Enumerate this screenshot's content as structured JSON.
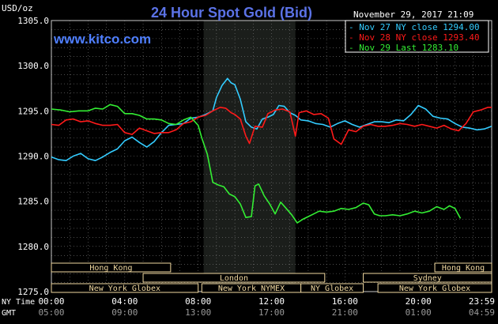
{
  "chart_data": {
    "type": "line",
    "title": "24 Hour Spot Gold (Bid)",
    "watermark": "www.kitco.com",
    "y_unit_label": "USD/oz",
    "timestamp": "November 29, 2017 21:09",
    "ylim": [
      1275.0,
      1305.0
    ],
    "y_ticks": [
      "1305.0",
      "1300.0",
      "1295.0",
      "1290.0",
      "1285.0",
      "1280.0",
      "1275.0"
    ],
    "x_row_ny_label": "NY Time",
    "x_row_gmt_label": "GMT",
    "x_ticks_ny": [
      "00:00",
      "04:00",
      "08:00",
      "12:00",
      "16:00",
      "20:00",
      "23:59"
    ],
    "x_ticks_gmt": [
      "05:00",
      "09:00",
      "13:00",
      "17:00",
      "21:00",
      "01:00",
      "04:59"
    ],
    "xlim_hours": [
      0,
      24
    ],
    "grid": true,
    "legend_position": "top-right",
    "highlight_region_hours": [
      8.3,
      13.3
    ],
    "series": [
      {
        "name": "Nov 27 NY close 1294.00",
        "color": "#33ccff",
        "points": [
          [
            0,
            1289.9
          ],
          [
            0.4,
            1289.6
          ],
          [
            0.8,
            1289.5
          ],
          [
            1.2,
            1290.0
          ],
          [
            1.6,
            1290.3
          ],
          [
            2.0,
            1289.7
          ],
          [
            2.4,
            1289.5
          ],
          [
            2.8,
            1289.9
          ],
          [
            3.2,
            1290.4
          ],
          [
            3.6,
            1290.8
          ],
          [
            4.0,
            1291.7
          ],
          [
            4.4,
            1292.1
          ],
          [
            4.8,
            1291.5
          ],
          [
            5.2,
            1291.0
          ],
          [
            5.6,
            1291.6
          ],
          [
            6.0,
            1292.6
          ],
          [
            6.4,
            1293.4
          ],
          [
            6.8,
            1293.5
          ],
          [
            7.2,
            1293.6
          ],
          [
            7.6,
            1294.2
          ],
          [
            8.0,
            1294.3
          ],
          [
            8.4,
            1294.6
          ],
          [
            8.8,
            1295.0
          ],
          [
            9.0,
            1296.5
          ],
          [
            9.3,
            1297.8
          ],
          [
            9.6,
            1298.6
          ],
          [
            9.8,
            1298.1
          ],
          [
            10.0,
            1297.9
          ],
          [
            10.3,
            1296.3
          ],
          [
            10.6,
            1293.8
          ],
          [
            10.9,
            1293.2
          ],
          [
            11.2,
            1293.0
          ],
          [
            11.5,
            1294.1
          ],
          [
            11.8,
            1294.3
          ],
          [
            12.1,
            1294.6
          ],
          [
            12.4,
            1295.6
          ],
          [
            12.7,
            1295.5
          ],
          [
            13.0,
            1294.8
          ],
          [
            13.3,
            1294.5
          ],
          [
            13.6,
            1294.0
          ],
          [
            14.0,
            1293.9
          ],
          [
            14.4,
            1293.6
          ],
          [
            14.8,
            1293.5
          ],
          [
            15.2,
            1293.2
          ],
          [
            15.6,
            1293.6
          ],
          [
            16.0,
            1293.9
          ],
          [
            16.4,
            1293.5
          ],
          [
            16.8,
            1293.2
          ],
          [
            17.2,
            1293.5
          ],
          [
            17.6,
            1293.8
          ],
          [
            18.0,
            1293.8
          ],
          [
            18.4,
            1293.7
          ],
          [
            18.8,
            1294.0
          ],
          [
            19.2,
            1293.9
          ],
          [
            19.6,
            1294.6
          ],
          [
            20.0,
            1295.6
          ],
          [
            20.4,
            1295.2
          ],
          [
            20.8,
            1294.4
          ],
          [
            21.2,
            1294.2
          ],
          [
            21.6,
            1294.1
          ],
          [
            22.0,
            1293.6
          ],
          [
            22.4,
            1293.2
          ],
          [
            22.8,
            1293.1
          ],
          [
            23.2,
            1292.9
          ],
          [
            23.6,
            1293.0
          ],
          [
            24.0,
            1293.3
          ]
        ]
      },
      {
        "name": "Nov 28 NY close 1293.40",
        "color": "#ff1a1a",
        "points": [
          [
            0,
            1293.5
          ],
          [
            0.4,
            1293.4
          ],
          [
            0.8,
            1294.0
          ],
          [
            1.2,
            1294.1
          ],
          [
            1.6,
            1293.8
          ],
          [
            2.0,
            1293.9
          ],
          [
            2.4,
            1293.6
          ],
          [
            2.8,
            1293.4
          ],
          [
            3.2,
            1293.4
          ],
          [
            3.6,
            1293.5
          ],
          [
            4.0,
            1292.6
          ],
          [
            4.4,
            1292.4
          ],
          [
            4.8,
            1293.1
          ],
          [
            5.2,
            1292.8
          ],
          [
            5.6,
            1292.5
          ],
          [
            6.0,
            1292.6
          ],
          [
            6.4,
            1292.6
          ],
          [
            6.8,
            1292.9
          ],
          [
            7.2,
            1293.6
          ],
          [
            7.6,
            1293.8
          ],
          [
            8.0,
            1294.3
          ],
          [
            8.4,
            1294.5
          ],
          [
            8.8,
            1295.0
          ],
          [
            9.2,
            1295.4
          ],
          [
            9.5,
            1295.3
          ],
          [
            9.8,
            1294.8
          ],
          [
            10.0,
            1294.6
          ],
          [
            10.3,
            1294.1
          ],
          [
            10.6,
            1292.2
          ],
          [
            10.8,
            1291.4
          ],
          [
            11.1,
            1293.3
          ],
          [
            11.5,
            1293.2
          ],
          [
            11.8,
            1294.7
          ],
          [
            12.2,
            1295.1
          ],
          [
            12.6,
            1295.2
          ],
          [
            13.0,
            1294.9
          ],
          [
            13.3,
            1292.2
          ],
          [
            13.5,
            1294.8
          ],
          [
            13.9,
            1295.0
          ],
          [
            14.3,
            1294.6
          ],
          [
            14.7,
            1294.7
          ],
          [
            15.1,
            1294.2
          ],
          [
            15.4,
            1291.9
          ],
          [
            15.8,
            1291.3
          ],
          [
            16.2,
            1292.9
          ],
          [
            16.6,
            1292.7
          ],
          [
            17.0,
            1293.3
          ],
          [
            17.4,
            1293.5
          ],
          [
            17.8,
            1293.3
          ],
          [
            18.2,
            1293.3
          ],
          [
            18.6,
            1293.4
          ],
          [
            19.0,
            1293.6
          ],
          [
            19.4,
            1293.5
          ],
          [
            19.8,
            1293.3
          ],
          [
            20.2,
            1293.5
          ],
          [
            20.6,
            1293.3
          ],
          [
            21.0,
            1293.1
          ],
          [
            21.4,
            1293.4
          ],
          [
            21.8,
            1293.0
          ],
          [
            22.2,
            1292.8
          ],
          [
            22.6,
            1293.6
          ],
          [
            23.0,
            1294.9
          ],
          [
            23.4,
            1295.1
          ],
          [
            23.8,
            1295.4
          ],
          [
            24.0,
            1295.4
          ]
        ]
      },
      {
        "name": "Nov 29 Last 1283.10",
        "color": "#33ee33",
        "points": [
          [
            0,
            1295.2
          ],
          [
            0.5,
            1295.1
          ],
          [
            1.0,
            1294.9
          ],
          [
            1.5,
            1295.0
          ],
          [
            2.0,
            1295.0
          ],
          [
            2.4,
            1295.3
          ],
          [
            2.8,
            1295.2
          ],
          [
            3.2,
            1295.7
          ],
          [
            3.6,
            1295.5
          ],
          [
            4.0,
            1294.7
          ],
          [
            4.4,
            1294.7
          ],
          [
            4.8,
            1294.5
          ],
          [
            5.2,
            1294.1
          ],
          [
            5.6,
            1294.1
          ],
          [
            6.0,
            1294.0
          ],
          [
            6.4,
            1293.6
          ],
          [
            6.8,
            1293.5
          ],
          [
            7.2,
            1294.0
          ],
          [
            7.6,
            1294.3
          ],
          [
            8.0,
            1293.4
          ],
          [
            8.2,
            1292.0
          ],
          [
            8.5,
            1290.2
          ],
          [
            8.8,
            1287.1
          ],
          [
            9.1,
            1286.8
          ],
          [
            9.4,
            1286.6
          ],
          [
            9.7,
            1285.8
          ],
          [
            10.0,
            1285.5
          ],
          [
            10.3,
            1284.7
          ],
          [
            10.6,
            1283.2
          ],
          [
            10.9,
            1283.3
          ],
          [
            11.1,
            1286.7
          ],
          [
            11.3,
            1286.9
          ],
          [
            11.6,
            1285.6
          ],
          [
            11.9,
            1284.7
          ],
          [
            12.2,
            1283.6
          ],
          [
            12.5,
            1284.9
          ],
          [
            12.8,
            1284.2
          ],
          [
            13.1,
            1283.5
          ],
          [
            13.4,
            1282.6
          ],
          [
            13.7,
            1283.0
          ],
          [
            14.0,
            1283.3
          ],
          [
            14.3,
            1283.6
          ],
          [
            14.6,
            1283.9
          ],
          [
            15.0,
            1283.8
          ],
          [
            15.4,
            1283.9
          ],
          [
            15.8,
            1284.2
          ],
          [
            16.2,
            1284.1
          ],
          [
            16.6,
            1284.3
          ],
          [
            17.0,
            1284.8
          ],
          [
            17.3,
            1284.6
          ],
          [
            17.6,
            1283.6
          ],
          [
            17.9,
            1283.4
          ],
          [
            18.2,
            1283.4
          ],
          [
            18.6,
            1283.5
          ],
          [
            19.0,
            1283.4
          ],
          [
            19.4,
            1283.6
          ],
          [
            19.8,
            1283.9
          ],
          [
            20.2,
            1283.7
          ],
          [
            20.6,
            1283.9
          ],
          [
            21.0,
            1284.4
          ],
          [
            21.4,
            1284.1
          ],
          [
            21.7,
            1284.5
          ],
          [
            22.0,
            1284.2
          ],
          [
            22.3,
            1283.1
          ]
        ]
      }
    ],
    "sessions": [
      {
        "label": "Hong Kong",
        "start": 0,
        "end": 6.5,
        "row": 0
      },
      {
        "label": "London",
        "start": 5.0,
        "end": 14.9,
        "row": 1
      },
      {
        "label": "New York Globex",
        "start": 0,
        "end": 8.0,
        "row": 2
      },
      {
        "label": "New York NYMEX",
        "start": 8.2,
        "end": 13.6,
        "row": 2
      },
      {
        "label": "NY Globex",
        "start": 13.6,
        "end": 17.0,
        "row": 2
      },
      {
        "label": "Hong Kong",
        "start": 20.9,
        "end": 24,
        "row": 0
      },
      {
        "label": "Sydney",
        "start": 17.0,
        "end": 24,
        "row": 1
      },
      {
        "label": "New York Globex",
        "start": 17.8,
        "end": 24,
        "row": 2
      }
    ]
  }
}
